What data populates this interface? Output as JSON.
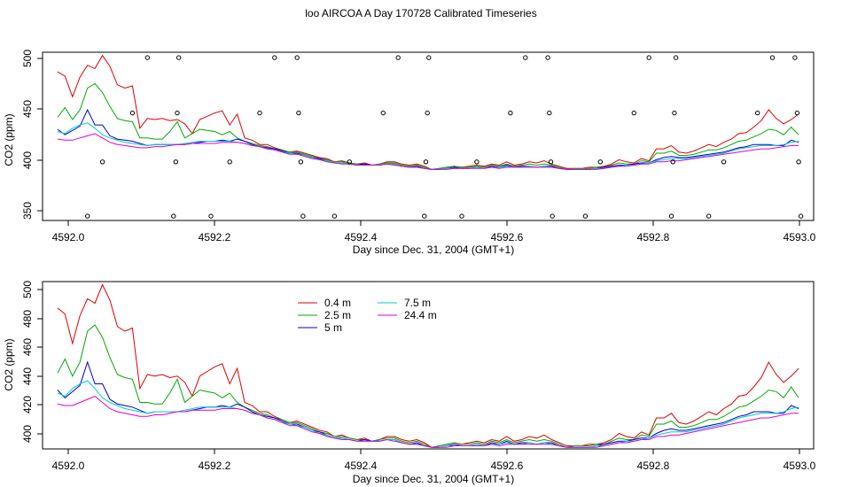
{
  "figure": {
    "title": "loo AIRCOA A  Day 170728  Calibrated Timeseries"
  },
  "colors": {
    "0.4 m": "#dd0000",
    "2.5 m": "#00aa00",
    "5 m": "#0000cc",
    "7.5 m": "#00cccc",
    "24.4 m": "#dd00dd"
  },
  "chart_data": [
    {
      "type": "line",
      "xlabel": "Day since Dec. 31, 2004 (GMT+1)",
      "ylabel": "CO2 (ppm)",
      "xlim": [
        4591.98,
        4593.01
      ],
      "ylim": [
        348,
        503
      ],
      "xticks": [
        "4592.0",
        "4592.2",
        "4592.4",
        "4592.6",
        "4592.8",
        "4593.0"
      ],
      "yticks": [
        "350",
        "400",
        "450",
        "500"
      ],
      "x": [
        4592.0,
        4592.01,
        4592.02,
        4592.03,
        4592.04,
        4592.05,
        4592.06,
        4592.07,
        4592.08,
        4592.09,
        4592.1,
        4592.11,
        4592.12,
        4592.13,
        4592.14,
        4592.15,
        4592.16,
        4592.17,
        4592.18,
        4592.19,
        4592.2,
        4592.21,
        4592.22,
        4592.23,
        4592.24,
        4592.25,
        4592.26,
        4592.27,
        4592.28,
        4592.29,
        4592.3,
        4592.31,
        4592.32,
        4592.33,
        4592.34,
        4592.35,
        4592.36,
        4592.37,
        4592.38,
        4592.39,
        4592.4,
        4592.41,
        4592.42,
        4592.43,
        4592.44,
        4592.45,
        4592.46,
        4592.47,
        4592.48,
        4592.49,
        4592.5,
        4592.51,
        4592.52,
        4592.53,
        4592.54,
        4592.55,
        4592.56,
        4592.57,
        4592.58,
        4592.59,
        4592.6,
        4592.61,
        4592.62,
        4592.63,
        4592.64,
        4592.65,
        4592.66,
        4592.67,
        4592.68,
        4592.69,
        4592.7,
        4592.71,
        4592.72,
        4592.73,
        4592.74,
        4592.75,
        4592.76,
        4592.77,
        4592.78,
        4592.79,
        4592.8,
        4592.81,
        4592.82,
        4592.83,
        4592.84,
        4592.85,
        4592.86,
        4592.87,
        4592.88,
        4592.89,
        4592.9,
        4592.91,
        4592.92,
        4592.93,
        4592.94,
        4592.95,
        4592.96,
        4592.97,
        4592.98,
        4592.99
      ],
      "series": [
        {
          "name": "0.4 m",
          "values": [
            485,
            481,
            462,
            480,
            491,
            488,
            500,
            490,
            473,
            470,
            472,
            433,
            442,
            441,
            442,
            440,
            441,
            437,
            428,
            441,
            444,
            447,
            449,
            436,
            446,
            424,
            422,
            418,
            418,
            415,
            413,
            411,
            412,
            410,
            408,
            406,
            405,
            402,
            403,
            401,
            400,
            401,
            399,
            400,
            402,
            402,
            400,
            399,
            400,
            398,
            395,
            396,
            397,
            398,
            397,
            398,
            399,
            398,
            400,
            399,
            402,
            399,
            400,
            402,
            401,
            403,
            400,
            398,
            396,
            396,
            396,
            397,
            397,
            398,
            400,
            404,
            402,
            401,
            405,
            403,
            414,
            414,
            417,
            411,
            410,
            412,
            415,
            418,
            416,
            420,
            423,
            428,
            429,
            434,
            440,
            450,
            442,
            437,
            441,
            446
          ]
        },
        {
          "name": "2.5 m",
          "values": [
            443,
            452,
            441,
            450,
            470,
            474,
            466,
            453,
            442,
            440,
            439,
            424,
            424,
            423,
            423,
            430,
            439,
            424,
            428,
            432,
            431,
            430,
            427,
            430,
            424,
            421,
            419,
            417,
            416,
            414,
            413,
            411,
            411,
            409,
            407,
            405,
            404,
            402,
            402,
            401,
            400,
            400,
            399,
            400,
            401,
            401,
            399,
            398,
            399,
            397,
            395,
            396,
            397,
            398,
            397,
            397,
            398,
            397,
            399,
            398,
            400,
            398,
            399,
            400,
            399,
            400,
            399,
            397,
            395,
            396,
            396,
            396,
            397,
            397,
            399,
            401,
            400,
            400,
            403,
            402,
            410,
            410,
            412,
            408,
            408,
            409,
            411,
            413,
            413,
            415,
            418,
            421,
            422,
            425,
            428,
            432,
            431,
            427,
            434,
            427
          ]
        },
        {
          "name": "5 m",
          "values": [
            432,
            427,
            431,
            435,
            450,
            436,
            436,
            426,
            423,
            422,
            421,
            419,
            417,
            418,
            418,
            418,
            418,
            418,
            419,
            420,
            421,
            421,
            422,
            421,
            423,
            421,
            418,
            416,
            415,
            414,
            412,
            410,
            410,
            408,
            406,
            405,
            403,
            401,
            401,
            400,
            399,
            400,
            399,
            399,
            400,
            400,
            398,
            397,
            398,
            396,
            395,
            395,
            396,
            397,
            396,
            396,
            397,
            396,
            398,
            397,
            399,
            397,
            398,
            398,
            397,
            398,
            398,
            396,
            395,
            395,
            395,
            395,
            396,
            397,
            398,
            399,
            399,
            400,
            401,
            401,
            404,
            406,
            407,
            406,
            406,
            407,
            408,
            409,
            410,
            411,
            413,
            415,
            416,
            418,
            418,
            418,
            417,
            417,
            422,
            420
          ]
        },
        {
          "name": "7.5 m",
          "values": [
            430,
            428,
            433,
            436,
            438,
            433,
            427,
            424,
            422,
            420,
            419,
            418,
            417,
            418,
            418,
            418,
            418,
            419,
            420,
            421,
            421,
            421,
            421,
            421,
            420,
            419,
            417,
            416,
            414,
            413,
            411,
            410,
            409,
            408,
            406,
            404,
            403,
            401,
            401,
            400,
            399,
            399,
            399,
            399,
            400,
            400,
            398,
            397,
            397,
            396,
            395,
            395,
            396,
            396,
            396,
            396,
            397,
            396,
            397,
            397,
            398,
            397,
            397,
            398,
            397,
            398,
            397,
            396,
            395,
            395,
            395,
            395,
            396,
            396,
            397,
            398,
            399,
            399,
            400,
            401,
            403,
            404,
            405,
            405,
            405,
            406,
            407,
            408,
            409,
            410,
            412,
            414,
            415,
            416,
            417,
            417,
            417,
            418,
            420,
            421
          ]
        },
        {
          "name": "24.4 m",
          "values": [
            423,
            422,
            422,
            424,
            426,
            428,
            424,
            420,
            418,
            417,
            416,
            415,
            415,
            416,
            416,
            417,
            418,
            418,
            419,
            419,
            419,
            419,
            420,
            420,
            420,
            419,
            417,
            416,
            414,
            413,
            411,
            409,
            409,
            407,
            405,
            404,
            402,
            401,
            400,
            400,
            399,
            399,
            399,
            399,
            400,
            399,
            398,
            397,
            397,
            396,
            395,
            395,
            395,
            396,
            396,
            396,
            396,
            396,
            397,
            396,
            397,
            397,
            397,
            397,
            397,
            397,
            397,
            396,
            395,
            395,
            395,
            395,
            395,
            396,
            397,
            398,
            398,
            399,
            400,
            400,
            402,
            402,
            403,
            403,
            404,
            405,
            406,
            407,
            408,
            409,
            410,
            411,
            412,
            413,
            414,
            414,
            415,
            416,
            417,
            417
          ]
        }
      ],
      "points": [
        {
          "x": 4592.04,
          "y": 352
        },
        {
          "x": 4592.06,
          "y": 402
        },
        {
          "x": 4592.1,
          "y": 447
        },
        {
          "x": 4592.12,
          "y": 498
        },
        {
          "x": 4592.155,
          "y": 352
        },
        {
          "x": 4592.158,
          "y": 402
        },
        {
          "x": 4592.16,
          "y": 447
        },
        {
          "x": 4592.162,
          "y": 498
        },
        {
          "x": 4592.205,
          "y": 352
        },
        {
          "x": 4592.23,
          "y": 402
        },
        {
          "x": 4592.27,
          "y": 447
        },
        {
          "x": 4592.29,
          "y": 498
        },
        {
          "x": 4592.32,
          "y": 498
        },
        {
          "x": 4592.322,
          "y": 447
        },
        {
          "x": 4592.325,
          "y": 402
        },
        {
          "x": 4592.328,
          "y": 352
        },
        {
          "x": 4592.37,
          "y": 352
        },
        {
          "x": 4592.39,
          "y": 402
        },
        {
          "x": 4592.435,
          "y": 447
        },
        {
          "x": 4592.455,
          "y": 498
        },
        {
          "x": 4592.49,
          "y": 352
        },
        {
          "x": 4592.492,
          "y": 402
        },
        {
          "x": 4592.494,
          "y": 447
        },
        {
          "x": 4592.496,
          "y": 498
        },
        {
          "x": 4592.54,
          "y": 352
        },
        {
          "x": 4592.56,
          "y": 402
        },
        {
          "x": 4592.605,
          "y": 447
        },
        {
          "x": 4592.625,
          "y": 498
        },
        {
          "x": 4592.655,
          "y": 498
        },
        {
          "x": 4592.657,
          "y": 447
        },
        {
          "x": 4592.659,
          "y": 402
        },
        {
          "x": 4592.661,
          "y": 352
        },
        {
          "x": 4592.705,
          "y": 352
        },
        {
          "x": 4592.725,
          "y": 402
        },
        {
          "x": 4592.77,
          "y": 447
        },
        {
          "x": 4592.79,
          "y": 498
        },
        {
          "x": 4592.82,
          "y": 352
        },
        {
          "x": 4592.822,
          "y": 402
        },
        {
          "x": 4592.824,
          "y": 447
        },
        {
          "x": 4592.826,
          "y": 498
        },
        {
          "x": 4592.87,
          "y": 352
        },
        {
          "x": 4592.89,
          "y": 402
        },
        {
          "x": 4592.935,
          "y": 447
        },
        {
          "x": 4592.955,
          "y": 498
        },
        {
          "x": 4592.985,
          "y": 498
        },
        {
          "x": 4592.988,
          "y": 447
        },
        {
          "x": 4592.99,
          "y": 402
        },
        {
          "x": 4592.993,
          "y": 352
        }
      ]
    },
    {
      "type": "line",
      "xlabel": "Day since Dec. 31, 2004 (GMT+1)",
      "ylabel": "CO2 (ppm)",
      "xlim": [
        4591.98,
        4593.01
      ],
      "ylim": [
        394,
        502
      ],
      "xticks": [
        "4592.0",
        "4592.2",
        "4592.4",
        "4592.6",
        "4592.8",
        "4593.0"
      ],
      "yticks": [
        "400",
        "420",
        "440",
        "460",
        "480",
        "500"
      ],
      "legend": {
        "position": "top-left",
        "entries": [
          "0.4 m",
          "2.5 m",
          "5 m",
          "7.5 m",
          "24.4 m"
        ]
      },
      "shares_series_with_panel": 0
    }
  ]
}
